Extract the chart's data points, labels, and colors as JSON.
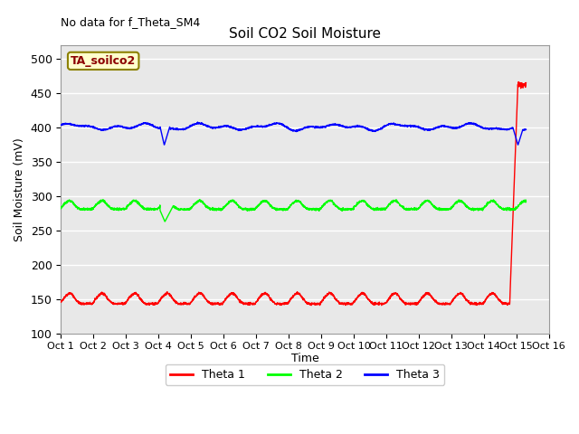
{
  "title": "Soil CO2 Soil Moisture",
  "no_data_label": "No data for f_Theta_SM4",
  "box_label": "TA_soilco2",
  "ylabel": "Soil Moisture (mV)",
  "xlabel": "Time",
  "ylim": [
    100,
    520
  ],
  "yticks": [
    100,
    150,
    200,
    250,
    300,
    350,
    400,
    450,
    500
  ],
  "xlim": [
    0,
    15
  ],
  "xtick_labels": [
    "Oct 1",
    "Oct 2",
    "Oct 3",
    "Oct 4",
    "Oct 5",
    "Oct 6",
    "Oct 7",
    "Oct 8",
    "Oct 9",
    "Oct 10",
    "Oct 11",
    "Oct 12",
    "Oct 13",
    "Oct 14",
    "Oct 15",
    "Oct 16"
  ],
  "line_colors": [
    "red",
    "lime",
    "blue"
  ],
  "legend_labels": [
    "Theta 1",
    "Theta 2",
    "Theta 3"
  ],
  "bg_color": "#e8e8e8",
  "grid_color": "white",
  "figsize": [
    6.4,
    4.8
  ],
  "dpi": 100
}
